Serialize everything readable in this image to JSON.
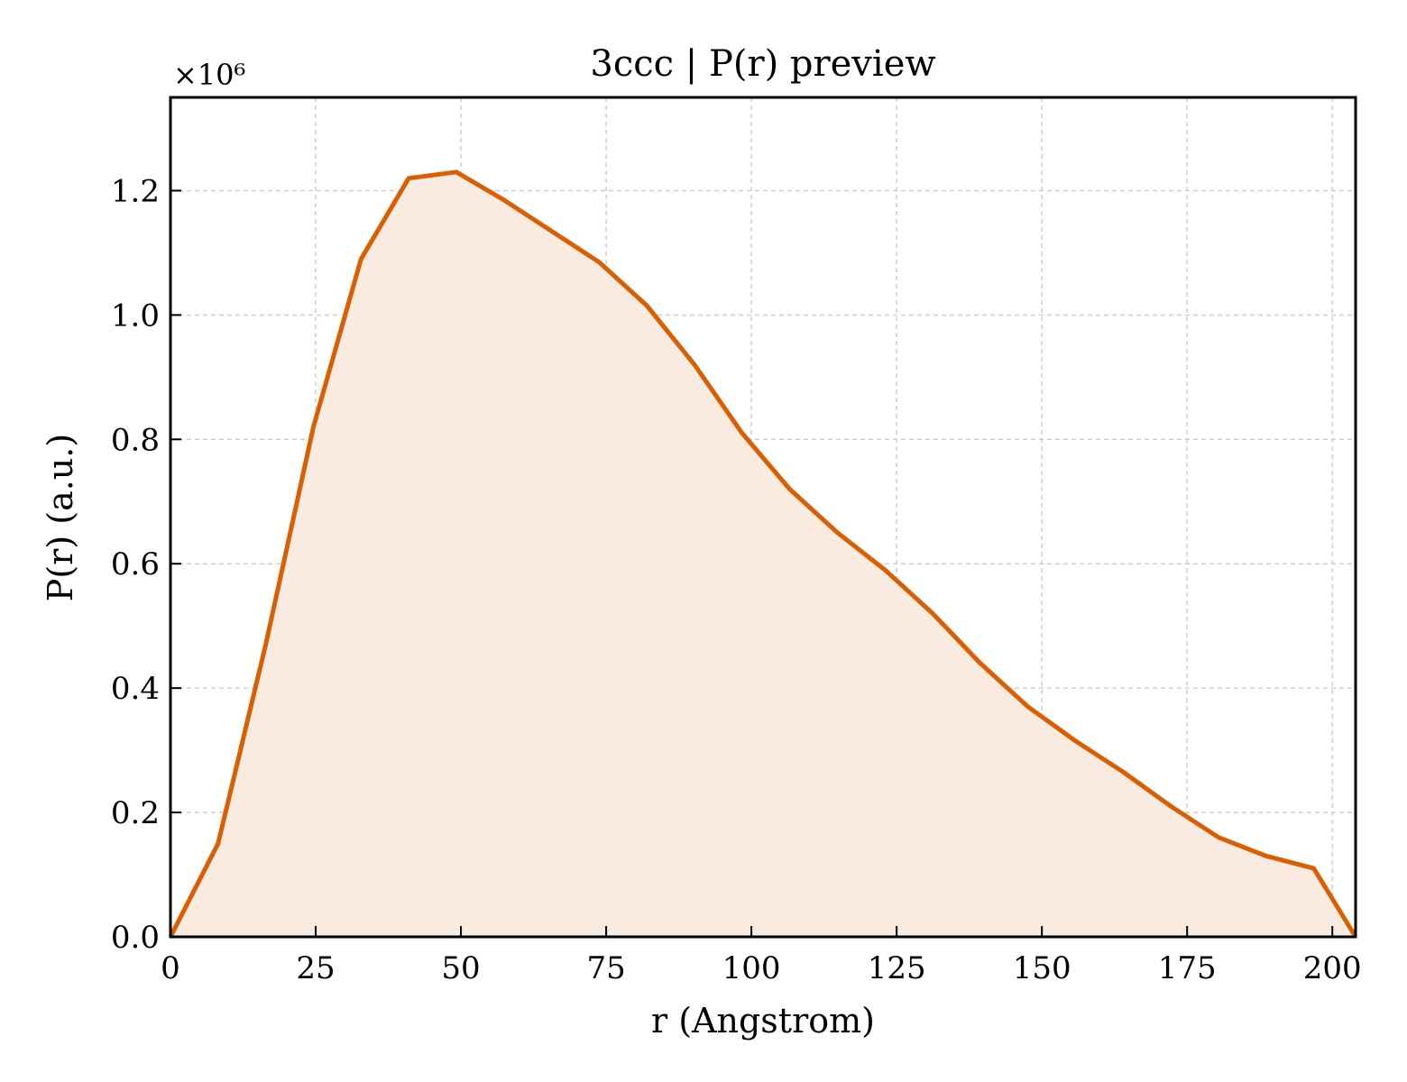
{
  "chart_data": {
    "type": "area",
    "title": "3ccc | P(r) preview",
    "xlabel": "r (Angstrom)",
    "ylabel": "P(r) (a.u.)",
    "y_multiplier_label": "×10⁶",
    "xlim": [
      0,
      204
    ],
    "ylim": [
      0,
      1.35
    ],
    "x_ticks": [
      0,
      25,
      50,
      75,
      100,
      125,
      150,
      175,
      200
    ],
    "y_ticks": [
      0.0,
      0.2,
      0.4,
      0.6,
      0.8,
      1.0,
      1.2
    ],
    "x_tick_labels": [
      "0",
      "25",
      "50",
      "75",
      "100",
      "125",
      "150",
      "175",
      "200"
    ],
    "y_tick_labels": [
      "0.0",
      "0.2",
      "0.4",
      "0.6",
      "0.8",
      "1.0",
      "1.2"
    ],
    "grid": true,
    "line_color": "#d95f02",
    "fill_color": "#f9ebe0",
    "series": [
      {
        "x": [
          0,
          8.2,
          16.4,
          24.6,
          32.8,
          41.0,
          49.2,
          57.4,
          65.6,
          73.8,
          82.0,
          90.2,
          98.4,
          106.6,
          114.8,
          123.0,
          131.2,
          139.4,
          147.6,
          155.8,
          164.0,
          172.2,
          180.4,
          188.6,
          196.8,
          204.0
        ],
        "y": [
          0.0,
          0.15,
          0.47,
          0.82,
          1.09,
          1.22,
          1.23,
          1.185,
          1.135,
          1.085,
          1.015,
          0.92,
          0.81,
          0.72,
          0.65,
          0.59,
          0.52,
          0.44,
          0.37,
          0.315,
          0.265,
          0.21,
          0.16,
          0.13,
          0.11,
          0.0
        ]
      }
    ]
  }
}
